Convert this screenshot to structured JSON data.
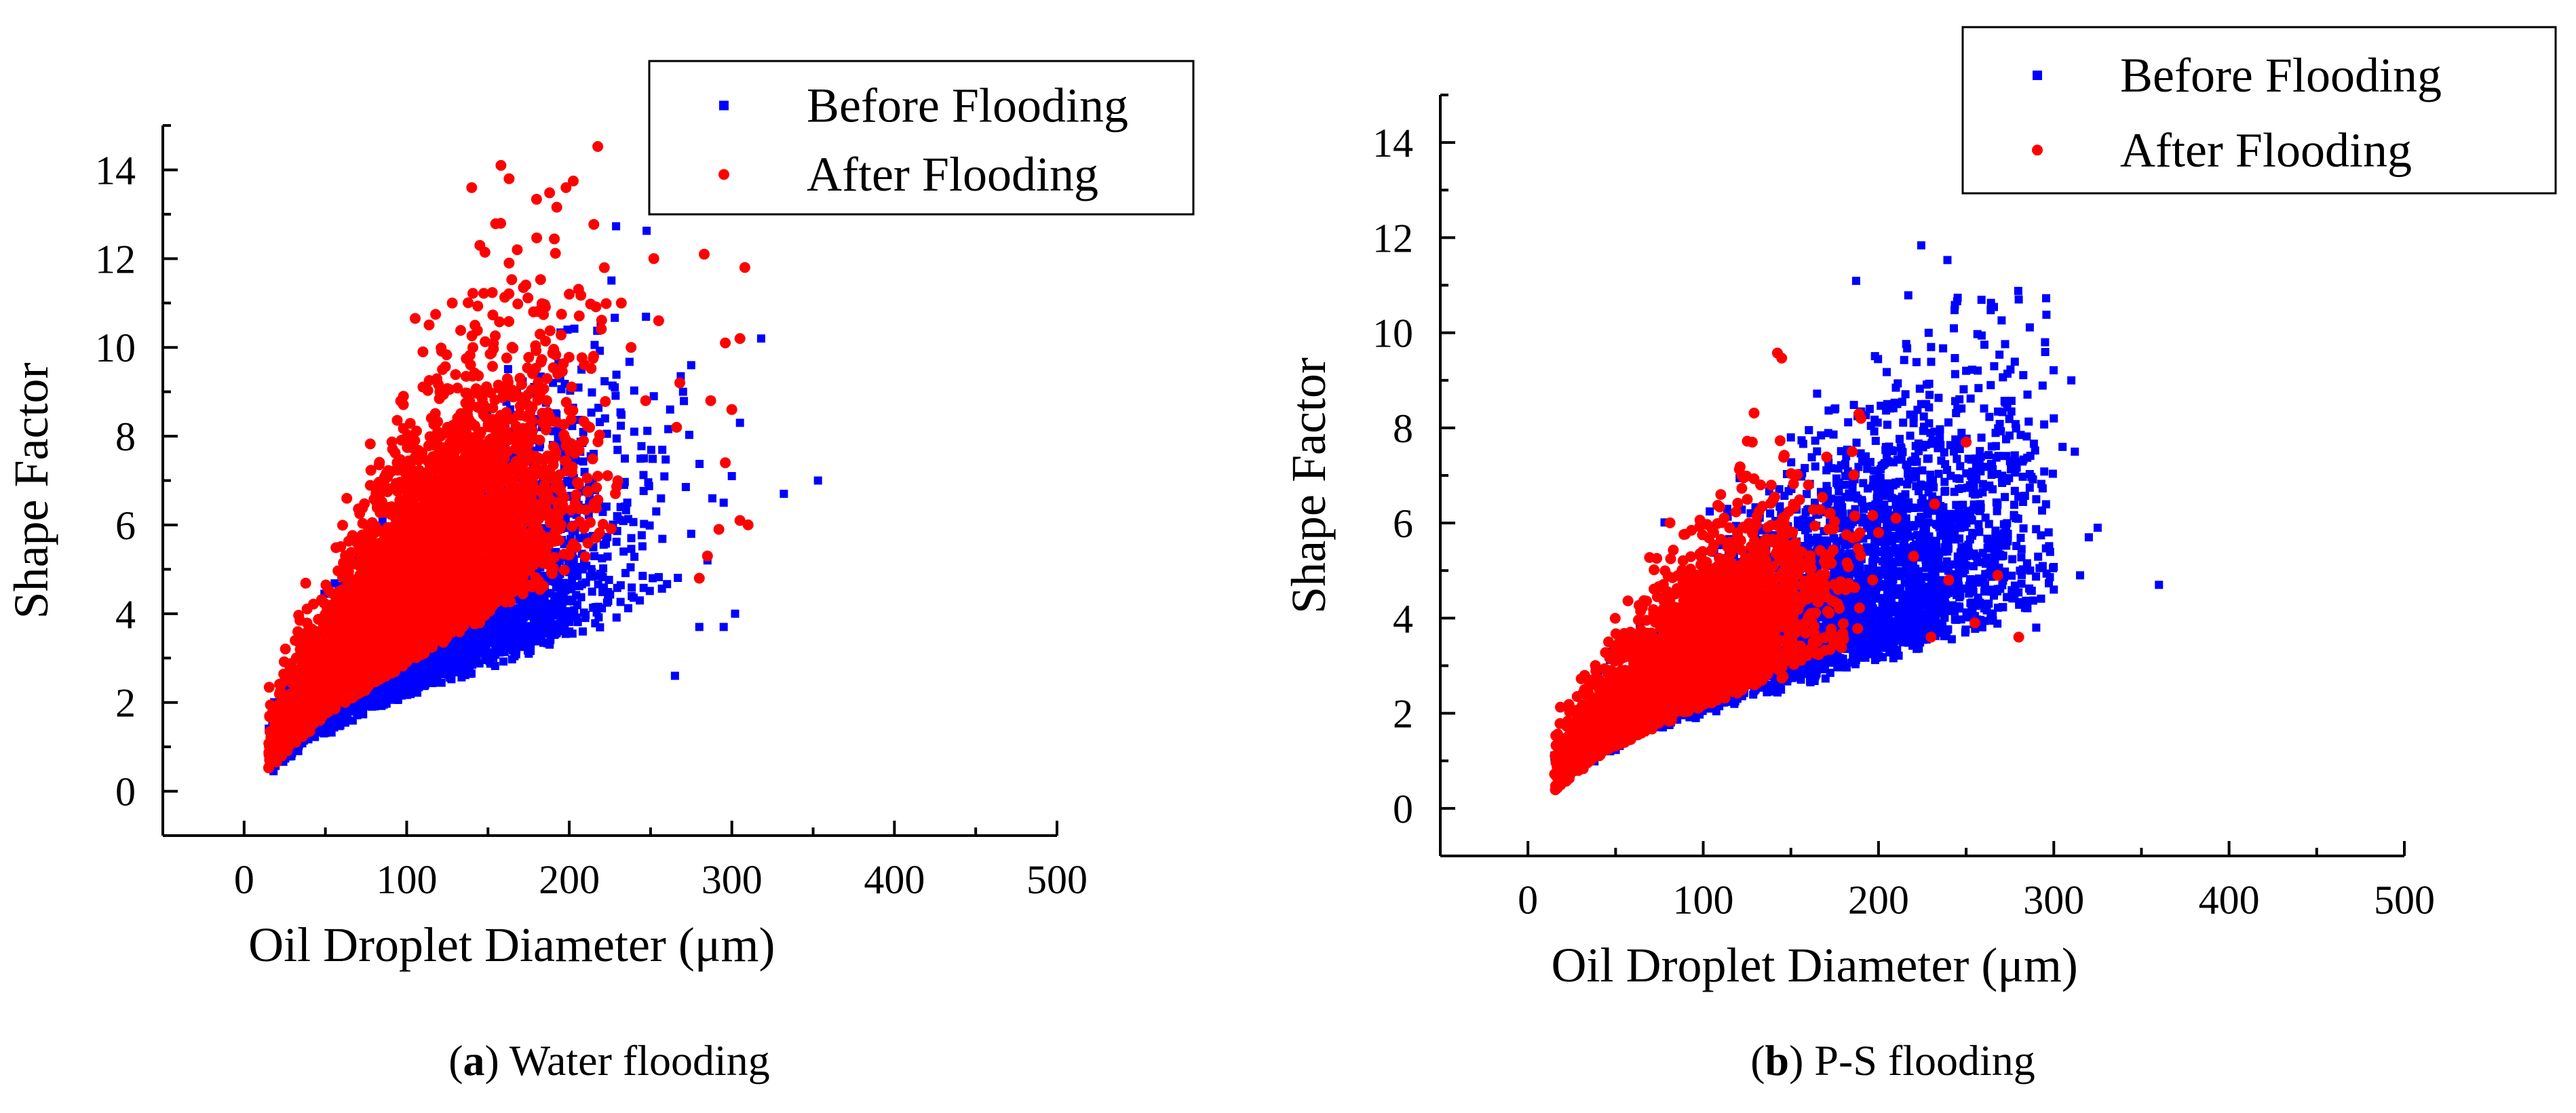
{
  "chart_data": [
    {
      "type": "scatter",
      "panel_letter": "a",
      "caption": "Water flooding",
      "xlabel": "Oil Droplet Diameter (μm)",
      "ylabel": "Shape Factor",
      "xlim": [
        -50,
        500
      ],
      "ylim": [
        -1,
        15
      ],
      "xticks": [
        0,
        100,
        200,
        300,
        400,
        500
      ],
      "yticks": [
        0,
        2,
        4,
        6,
        8,
        10,
        12,
        14
      ],
      "legend_position": "top-right",
      "series": [
        {
          "name": "Before Flooding",
          "color": "#0000ff",
          "marker": "square",
          "outliers": [
            [
              353,
              7.0
            ],
            [
              332,
              6.7
            ],
            [
              318,
              10.2
            ],
            [
              305,
              8.3
            ],
            [
              300,
              7.1
            ],
            [
              295,
              6.5
            ],
            [
              288,
              6.6
            ],
            [
              275,
              9.6
            ],
            [
              270,
              9.0
            ],
            [
              262,
              8.6
            ],
            [
              252,
              8.9
            ],
            [
              240,
              8.1
            ],
            [
              246,
              7.5
            ],
            [
              228,
              9.1
            ],
            [
              222,
              8.4
            ],
            [
              215,
              7.6
            ],
            [
              275,
              5.8
            ],
            [
              285,
              5.2
            ],
            [
              280,
              3.7
            ],
            [
              295,
              3.7
            ],
            [
              190,
              9.2
            ],
            [
              302,
              4.0
            ],
            [
              265,
              2.6
            ]
          ]
        },
        {
          "name": "After Flooding",
          "color": "#ff0000",
          "marker": "circle",
          "outliers": [
            [
              158,
              14.1
            ],
            [
              163,
              13.8
            ],
            [
              198,
              13.6
            ],
            [
              140,
              13.6
            ],
            [
              145,
              12.3
            ],
            [
              168,
              12.2
            ],
            [
              252,
              12.0
            ],
            [
              283,
              12.1
            ],
            [
              308,
              11.8
            ],
            [
              163,
              11.9
            ],
            [
              128,
              11.0
            ],
            [
              200,
              11.2
            ],
            [
              178,
              10.8
            ],
            [
              232,
              11.0
            ],
            [
              255,
              10.6
            ],
            [
              296,
              10.1
            ],
            [
              305,
              10.2
            ],
            [
              142,
              10.5
            ],
            [
              182,
              10.3
            ],
            [
              110,
              9.9
            ],
            [
              215,
              9.8
            ],
            [
              238,
              10.0
            ],
            [
              122,
              9.5
            ],
            [
              268,
              9.2
            ],
            [
              287,
              8.8
            ],
            [
              300,
              8.6
            ],
            [
              98,
              8.9
            ],
            [
              247,
              8.8
            ],
            [
              266,
              8.2
            ],
            [
              296,
              7.4
            ],
            [
              305,
              6.1
            ],
            [
              285,
              5.3
            ],
            [
              292,
              5.9
            ],
            [
              280,
              4.8
            ],
            [
              310,
              6.0
            ],
            [
              105,
              7.9
            ],
            [
              125,
              8.2
            ]
          ]
        }
      ]
    },
    {
      "type": "scatter",
      "panel_letter": "b",
      "caption": "P-S flooding",
      "xlabel": "Oil Droplet Diameter (μm)",
      "ylabel": "Shape Factor",
      "xlim": [
        -50,
        500
      ],
      "ylim": [
        -1,
        15
      ],
      "xticks": [
        0,
        100,
        200,
        300,
        400,
        500
      ],
      "yticks": [
        0,
        2,
        4,
        6,
        8,
        10,
        12,
        14
      ],
      "legend_position": "top-right",
      "series": [
        {
          "name": "Before Flooding",
          "color": "#0000ff",
          "marker": "square",
          "outliers": [
            [
              280,
              10.7
            ],
            [
              230,
              9.7
            ],
            [
              295,
              9.8
            ],
            [
              250,
              9.2
            ],
            [
              264,
              8.9
            ],
            [
              310,
              9.0
            ],
            [
              205,
              8.5
            ],
            [
              220,
              8.1
            ],
            [
              245,
              8.4
            ],
            [
              285,
              8.7
            ],
            [
              300,
              8.2
            ],
            [
              312,
              7.5
            ],
            [
              305,
              7.6
            ],
            [
              150,
              7.8
            ],
            [
              360,
              4.7
            ],
            [
              325,
              5.9
            ],
            [
              320,
              5.7
            ],
            [
              255,
              6.6
            ],
            [
              290,
              6.5
            ],
            [
              275,
              7.3
            ],
            [
              315,
              4.9
            ],
            [
              300,
              4.6
            ],
            [
              290,
              3.8
            ],
            [
              235,
              7.8
            ]
          ]
        },
        {
          "name": "After Flooding",
          "color": "#ff0000",
          "marker": "circle",
          "outliers": [
            [
              128,
              7.7
            ],
            [
              190,
              8.2
            ],
            [
              250,
              7.7
            ],
            [
              122,
              7.0
            ],
            [
              140,
              6.5
            ],
            [
              160,
              6.8
            ],
            [
              185,
              7.5
            ],
            [
              110,
              6.6
            ],
            [
              172,
              6.2
            ],
            [
              232,
              6.4
            ],
            [
              115,
              5.9
            ],
            [
              150,
              5.4
            ],
            [
              200,
              5.8
            ],
            [
              220,
              5.3
            ],
            [
              240,
              4.8
            ],
            [
              268,
              4.9
            ],
            [
              255,
              3.9
            ],
            [
              280,
              3.6
            ],
            [
              210,
              6.1
            ],
            [
              230,
              3.6
            ],
            [
              100,
              5.2
            ]
          ]
        }
      ]
    }
  ]
}
